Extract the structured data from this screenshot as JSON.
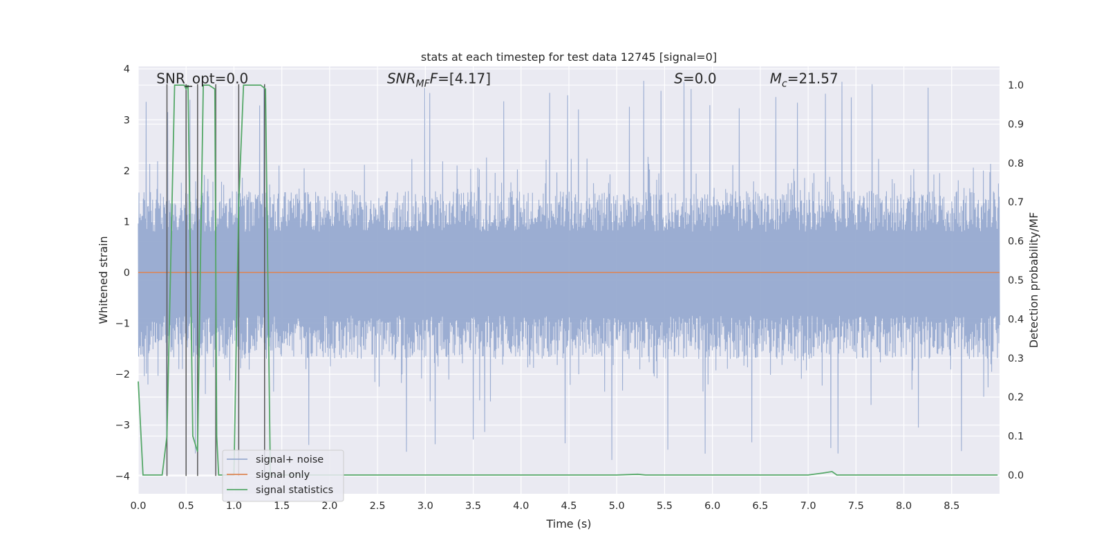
{
  "chart_data": {
    "type": "line",
    "title": "stats at each timestep for test data 12745 [signal=0]",
    "xlabel": "Time (s)",
    "ylabel_left": "Whitened strain",
    "ylabel_right": "Detection probability/MF",
    "xlim": [
      0.0,
      9.0
    ],
    "ylim_left": [
      -4.35,
      4.05
    ],
    "ylim_right": [
      -0.048,
      1.048
    ],
    "x_ticks": [
      0.0,
      0.5,
      1.0,
      1.5,
      2.0,
      2.5,
      3.0,
      3.5,
      4.0,
      4.5,
      5.0,
      5.5,
      6.0,
      6.5,
      7.0,
      7.5,
      8.0,
      8.5
    ],
    "x_tick_labels": [
      "0.0",
      "0.5",
      "1.0",
      "1.5",
      "2.0",
      "2.5",
      "3.0",
      "3.5",
      "4.0",
      "4.5",
      "5.0",
      "5.5",
      "6.0",
      "6.5",
      "7.0",
      "7.5",
      "8.0",
      "8.5"
    ],
    "y_left_ticks": [
      4,
      3,
      2,
      1,
      0,
      -1,
      -2,
      -3,
      -4
    ],
    "y_left_tick_labels": [
      "4",
      "3",
      "2",
      "1",
      "0",
      "−1",
      "−2",
      "−3",
      "−4"
    ],
    "y_right_ticks": [
      1.0,
      0.9,
      0.8,
      0.7,
      0.6,
      0.5,
      0.4,
      0.3,
      0.2,
      0.1,
      0.0
    ],
    "y_right_tick_labels": [
      "1.0",
      "0.9",
      "0.8",
      "0.7",
      "0.6",
      "0.5",
      "0.4",
      "0.3",
      "0.2",
      "0.1",
      "0.0"
    ],
    "grid": true,
    "legend_position": "lower-left",
    "annotations": [
      {
        "name": "snr-opt-annotation",
        "text": "SNR_opt=0.0",
        "x": 0.19,
        "y": 3.72
      },
      {
        "name": "snr-mf-annotation",
        "text": "SNR_MF=[4.17]",
        "x": 2.6,
        "y": 3.72
      },
      {
        "name": "s-annotation",
        "text": "S=0.0",
        "x": 5.6,
        "y": 3.72
      },
      {
        "name": "mc-annotation",
        "text": "M_c=21.57",
        "x": 6.6,
        "y": 3.72
      }
    ],
    "series": [
      {
        "name": "signal+ noise",
        "color": "#97aad0",
        "axis": "left",
        "style": "dense noise trace",
        "envelope": {
          "typical_low": -1.7,
          "typical_high": 1.6,
          "peak_low": -3.7,
          "peak_high": 3.8
        },
        "peak_spikes_x": [
          0.08,
          0.31,
          0.54,
          1.27,
          1.31,
          2.99,
          3.05,
          3.82,
          4.3,
          4.49,
          4.6,
          5.13,
          5.28,
          5.46,
          5.7,
          5.78,
          5.97,
          6.28,
          6.66,
          6.89,
          7.18,
          7.35,
          7.45,
          7.67,
          8.25
        ],
        "trough_spikes_x": [
          0.3,
          0.6,
          1.78,
          2.8,
          3.1,
          3.5,
          3.62,
          4.46,
          4.95,
          5.53,
          5.92,
          6.41,
          7.24,
          7.31,
          8.15,
          8.6
        ]
      },
      {
        "name": "signal only",
        "color": "#dd8452",
        "axis": "left",
        "x": [
          0.0,
          9.0
        ],
        "y": [
          0.0,
          0.0
        ]
      },
      {
        "name": "signal statistics",
        "color": "#55a868",
        "axis": "right",
        "x": [
          0.0,
          0.05,
          0.12,
          0.25,
          0.3,
          0.38,
          0.43,
          0.48,
          0.5,
          0.52,
          0.57,
          0.62,
          0.65,
          0.68,
          0.74,
          0.8,
          0.82,
          0.84,
          0.87,
          1.0,
          1.05,
          1.1,
          1.18,
          1.28,
          1.33,
          1.38,
          1.45,
          1.6,
          2.0,
          3.0,
          4.0,
          5.0,
          5.22,
          5.3,
          5.5,
          6.0,
          7.0,
          7.15,
          7.25,
          7.3,
          7.5,
          8.0,
          8.98
        ],
        "y": [
          0.24,
          0.0,
          0.0,
          0.0,
          0.1,
          1.0,
          1.0,
          1.0,
          0.99,
          1.0,
          0.1,
          0.06,
          0.55,
          1.0,
          1.0,
          0.99,
          0.1,
          0.0,
          0.0,
          0.0,
          0.7,
          1.0,
          1.0,
          1.0,
          0.99,
          0.0,
          0.0,
          0.0,
          0.0,
          0.0,
          0.0,
          0.0,
          0.002,
          0.0,
          0.0,
          0.0,
          0.0,
          0.005,
          0.009,
          0.0,
          0.0,
          0.0,
          0.0
        ]
      },
      {
        "name": "vertical-markers",
        "color": "#555555",
        "axis": "left",
        "x": [
          0.3,
          0.5,
          0.62,
          0.81,
          1.05,
          1.32
        ],
        "y_range": [
          -4.0,
          3.7
        ]
      }
    ]
  }
}
